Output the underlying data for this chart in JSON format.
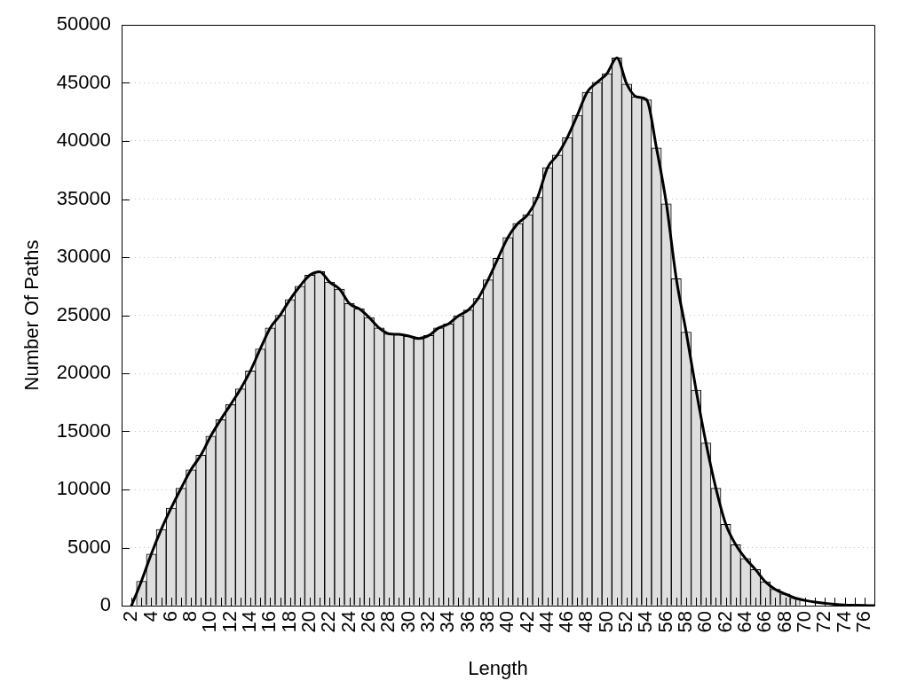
{
  "chart_data": {
    "type": "bar",
    "xlabel": "Length",
    "ylabel": "Number Of Paths",
    "xlim": [
      1,
      77
    ],
    "xticks": [
      2,
      {
        "value": 3,
        "label": null
      },
      4,
      {
        "value": 5,
        "label": null
      },
      6,
      {
        "value": 7,
        "label": null
      },
      8,
      {
        "value": 9,
        "label": null
      },
      10,
      {
        "value": 11,
        "label": null
      },
      12,
      {
        "value": 13,
        "label": null
      },
      14,
      {
        "value": 15,
        "label": null
      },
      16,
      {
        "value": 17,
        "label": null
      },
      18,
      {
        "value": 19,
        "label": null
      },
      20,
      {
        "value": 21,
        "label": null
      },
      22,
      {
        "value": 23,
        "label": null
      },
      24,
      {
        "value": 25,
        "label": null
      },
      26,
      {
        "value": 27,
        "label": null
      },
      28,
      {
        "value": 29,
        "label": null
      },
      30,
      {
        "value": 31,
        "label": null
      },
      32,
      {
        "value": 33,
        "label": null
      },
      34,
      {
        "value": 35,
        "label": null
      },
      36,
      {
        "value": 37,
        "label": null
      },
      38,
      {
        "value": 39,
        "label": null
      },
      40,
      {
        "value": 41,
        "label": null
      },
      42,
      {
        "value": 43,
        "label": null
      },
      44,
      {
        "value": 45,
        "label": null
      },
      46,
      {
        "value": 47,
        "label": null
      },
      48,
      {
        "value": 49,
        "label": null
      },
      50,
      {
        "value": 51,
        "label": null
      },
      52,
      {
        "value": 53,
        "label": null
      },
      54,
      {
        "value": 55,
        "label": null
      },
      56,
      {
        "value": 57,
        "label": null
      },
      58,
      {
        "value": 59,
        "label": null
      },
      60,
      {
        "value": 61,
        "label": null
      },
      62,
      {
        "value": 63,
        "label": null
      },
      64,
      {
        "value": 65,
        "label": null
      },
      66,
      {
        "value": 67,
        "label": null
      },
      68,
      {
        "value": 69,
        "label": null
      },
      70,
      {
        "value": 71,
        "label": null
      },
      72,
      {
        "value": 73,
        "label": null
      },
      74,
      {
        "value": 75,
        "label": null
      },
      76
    ],
    "ylim": [
      0,
      50000
    ],
    "yticks": [
      0,
      5000,
      10000,
      15000,
      20000,
      25000,
      30000,
      35000,
      40000,
      45000,
      50000
    ],
    "grid": "y",
    "series": [
      {
        "color": "#dedede",
        "x": [
          3,
          4,
          5,
          6,
          7,
          8,
          9,
          10,
          11,
          12,
          13,
          14,
          15,
          16,
          17,
          18,
          19,
          20,
          21,
          22,
          23,
          24,
          25,
          26,
          27,
          28,
          29,
          30,
          31,
          32,
          33,
          34,
          35,
          36,
          37,
          38,
          39,
          40,
          41,
          42,
          43,
          44,
          45,
          46,
          47,
          48,
          49,
          50,
          51,
          52,
          53,
          54,
          55,
          56,
          57,
          58,
          59,
          60,
          61,
          62,
          63,
          64,
          65,
          66,
          67,
          68,
          69
        ],
        "values": [
          2100,
          4450,
          6550,
          8400,
          10100,
          11700,
          12950,
          14600,
          16000,
          17300,
          18650,
          20200,
          22100,
          23900,
          25000,
          26350,
          27500,
          28450,
          28750,
          27850,
          27250,
          26000,
          25550,
          24800,
          23900,
          23400,
          23350,
          23200,
          23000,
          23250,
          23900,
          24250,
          24950,
          25450,
          26450,
          28050,
          29900,
          31700,
          32900,
          33650,
          35150,
          37700,
          38800,
          40300,
          42200,
          44200,
          45050,
          45800,
          47150,
          44900,
          43800,
          43550,
          39400,
          34600,
          28150,
          23550,
          18550,
          14000,
          10100,
          7000,
          5250,
          4050,
          3100,
          2050,
          1400,
          1000,
          650
        ]
      },
      {
        "type": "line",
        "color": "#000000",
        "x": [
          2,
          3,
          4,
          5,
          6,
          7,
          8,
          9,
          10,
          11,
          12,
          13,
          14,
          15,
          16,
          17,
          18,
          19,
          20,
          21,
          22,
          23,
          24,
          25,
          26,
          27,
          28,
          29,
          30,
          31,
          32,
          33,
          34,
          35,
          36,
          37,
          38,
          39,
          40,
          41,
          42,
          43,
          44,
          45,
          46,
          47,
          48,
          49,
          50,
          51,
          52,
          53,
          54,
          55,
          56,
          57,
          58,
          59,
          60,
          61,
          62,
          63,
          64,
          65,
          66,
          67,
          68,
          69,
          70,
          71,
          72,
          73,
          74,
          75,
          76,
          77
        ],
        "values": [
          0,
          2100,
          4450,
          6550,
          8400,
          10100,
          11700,
          12950,
          14600,
          16000,
          17300,
          18650,
          20200,
          22100,
          23900,
          25000,
          26350,
          27500,
          28450,
          28750,
          27850,
          27250,
          26000,
          25550,
          24800,
          23900,
          23400,
          23350,
          23200,
          23000,
          23250,
          23900,
          24250,
          24950,
          25450,
          26450,
          28050,
          29900,
          31700,
          32900,
          33650,
          35150,
          37700,
          38800,
          40300,
          42200,
          44200,
          45050,
          45800,
          47150,
          44900,
          43800,
          43550,
          39400,
          34600,
          28150,
          23550,
          18550,
          14000,
          10100,
          7000,
          5250,
          4050,
          3100,
          2050,
          1400,
          1000,
          650,
          450,
          300,
          200,
          120,
          60,
          30,
          10,
          0
        ]
      }
    ]
  }
}
